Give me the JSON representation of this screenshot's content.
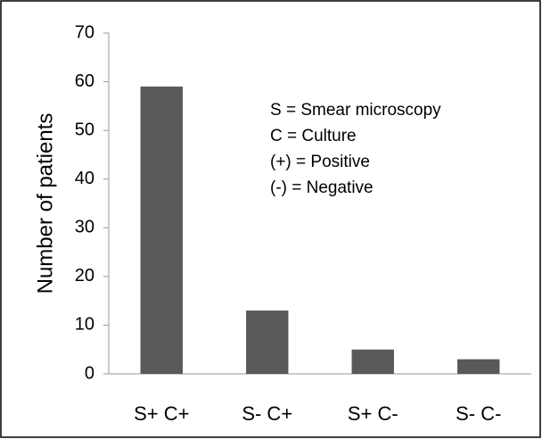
{
  "chart_data": {
    "type": "bar",
    "y_label": "Number of patients",
    "categories": [
      "S+ C+",
      "S- C+",
      "S+ C-",
      "S- C-"
    ],
    "values": [
      59,
      13,
      5,
      3
    ],
    "color": "#595959",
    "ylim": [
      0,
      70
    ],
    "yticks": [
      0,
      10,
      20,
      30,
      40,
      50,
      60,
      70
    ],
    "grid": false,
    "annotations": [
      "S = Smear microscopy",
      "C = Culture",
      "(+) = Positive",
      "(-) = Negative"
    ]
  }
}
